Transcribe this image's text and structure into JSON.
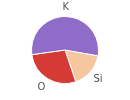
{
  "chart_data": {
    "type": "pie",
    "categories": [
      "Si",
      "O",
      "K"
    ],
    "values": [
      17,
      28,
      55
    ],
    "colors": [
      "#f6c79e",
      "#d63a35",
      "#8e6cc8"
    ]
  }
}
